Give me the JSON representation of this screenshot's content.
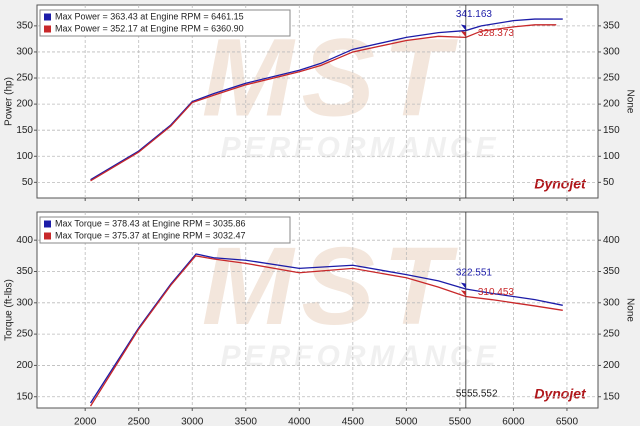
{
  "chart_data": [
    {
      "type": "line",
      "ylabel": "Power (hp)",
      "y2label": "None",
      "xlim": [
        1550,
        6790
      ],
      "xticks": [
        2000,
        2500,
        3000,
        3500,
        4000,
        4500,
        5000,
        5500,
        6000,
        6500
      ],
      "ylim": [
        20,
        390
      ],
      "yticks": [
        50,
        100,
        150,
        200,
        250,
        300,
        350
      ],
      "grid": true,
      "watermark": "MST",
      "watermark_sub": "PERFORMANCE",
      "logo": "Dynojet",
      "series": [
        {
          "name": "Max Power = 363.43 at Engine RPM = 6461.15",
          "color": "#1c1ca8",
          "x": [
            2050,
            2500,
            2800,
            3000,
            3200,
            3500,
            4000,
            4200,
            4500,
            5000,
            5300,
            5555,
            5700,
            6000,
            6200,
            6461
          ],
          "values": [
            55,
            110,
            160,
            205,
            220,
            240,
            265,
            278,
            305,
            328,
            337,
            341,
            350,
            360,
            363,
            363
          ]
        },
        {
          "name": "Max Power = 352.17 at Engine RPM = 6360.90",
          "color": "#c8282a",
          "x": [
            2050,
            2500,
            2800,
            3000,
            3200,
            3500,
            4000,
            4200,
            4500,
            5000,
            5300,
            5555,
            5700,
            6000,
            6200,
            6400
          ],
          "values": [
            53,
            108,
            158,
            203,
            217,
            237,
            262,
            274,
            300,
            322,
            330,
            328,
            340,
            348,
            352,
            352
          ]
        }
      ],
      "cursor": {
        "x": 5555.552,
        "values": [
          341.163,
          328.373
        ]
      }
    },
    {
      "type": "line",
      "ylabel": "Torque (ft-lbs)",
      "y2label": "None",
      "xlim": [
        1550,
        6790
      ],
      "xticks": [
        2000,
        2500,
        3000,
        3500,
        4000,
        4500,
        5000,
        5500,
        6000,
        6500
      ],
      "ylim": [
        132,
        445
      ],
      "yticks": [
        150,
        200,
        250,
        300,
        350,
        400
      ],
      "grid": true,
      "watermark": "MST",
      "watermark_sub": "PERFORMANCE",
      "logo": "Dynojet",
      "series": [
        {
          "name": "Max Torque = 378.43 at Engine RPM = 3035.86",
          "color": "#1c1ca8",
          "x": [
            2050,
            2500,
            2800,
            3036,
            3200,
            3500,
            4000,
            4500,
            5000,
            5300,
            5555,
            5800,
            6000,
            6200,
            6461
          ],
          "values": [
            140,
            260,
            330,
            378,
            372,
            368,
            355,
            360,
            345,
            335,
            322,
            315,
            310,
            305,
            296
          ]
        },
        {
          "name": "Max Torque = 375.37 at Engine RPM = 3032.47",
          "color": "#c8282a",
          "x": [
            2050,
            2500,
            2800,
            3032,
            3200,
            3500,
            4000,
            4500,
            5000,
            5300,
            5555,
            5800,
            6000,
            6200,
            6461
          ],
          "values": [
            135,
            258,
            328,
            375,
            370,
            363,
            348,
            355,
            340,
            325,
            310,
            305,
            300,
            295,
            288
          ]
        }
      ],
      "cursor": {
        "x": 5555.552,
        "values": [
          322.551,
          310.453
        ]
      }
    }
  ]
}
